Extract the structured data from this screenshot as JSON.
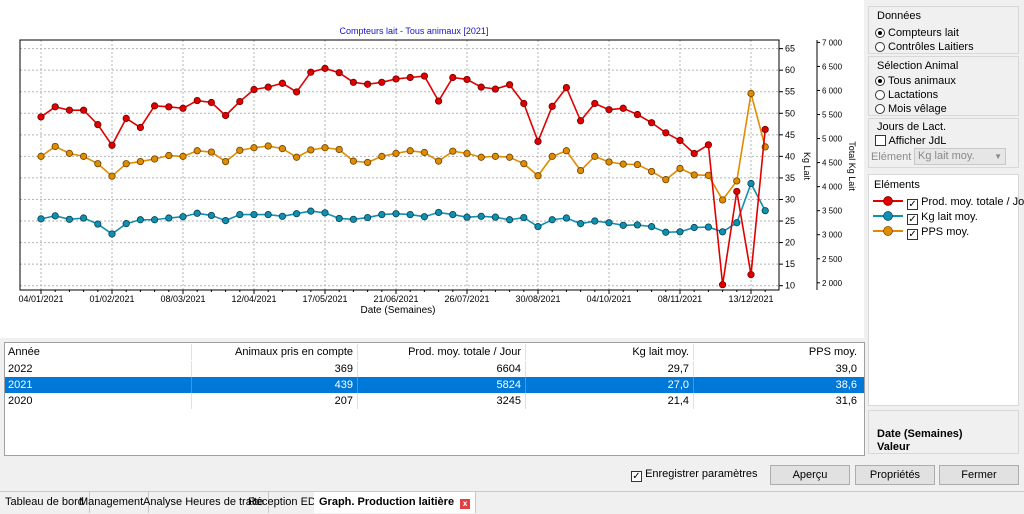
{
  "chart": {
    "title": "Compteurs lait - Tous animaux [2021]",
    "xlabel": "Date (Semaines)",
    "ylabel_left": "Kg Lait",
    "ylabel_right": "Total Kg Lait"
  },
  "chart_data": {
    "type": "line",
    "title": "Compteurs lait - Tous animaux [2021]",
    "xlabel": "Date (Semaines)",
    "ylabel": "Kg Lait",
    "y2label": "Total Kg Lait",
    "x_tick_labels": [
      "04/01/2021",
      "01/02/2021",
      "08/03/2021",
      "12/04/2021",
      "17/05/2021",
      "21/06/2021",
      "26/07/2021",
      "30/08/2021",
      "04/10/2021",
      "08/11/2021",
      "13/12/2021"
    ],
    "y_ticks": [
      10,
      15,
      20,
      25,
      30,
      35,
      40,
      45,
      50,
      55,
      60,
      65
    ],
    "y2_ticks": [
      "2 000",
      "2 500",
      "3 000",
      "3 500",
      "4 000",
      "4 500",
      "5 000",
      "5 500",
      "6 000",
      "6 500",
      "7 000"
    ],
    "ylim": [
      9,
      67
    ],
    "y2lim": [
      1850,
      7050
    ],
    "grid": true,
    "x_weeks": [
      1,
      2,
      3,
      4,
      5,
      6,
      7,
      8,
      9,
      10,
      11,
      12,
      13,
      14,
      15,
      16,
      17,
      18,
      19,
      20,
      21,
      22,
      23,
      24,
      25,
      26,
      27,
      28,
      29,
      30,
      31,
      32,
      33,
      34,
      35,
      36,
      37,
      38,
      39,
      40,
      41,
      42,
      43,
      44,
      45,
      46,
      47,
      48,
      49,
      50,
      51,
      52
    ],
    "series": [
      {
        "name": "Prod. moy. totale / Jour",
        "color": "#e00000",
        "axis": "right",
        "values": [
          5450,
          5660,
          5590,
          5590,
          5290,
          4860,
          5420,
          5230,
          5680,
          5660,
          5630,
          5790,
          5750,
          5480,
          5770,
          6020,
          6070,
          6150,
          5970,
          6380,
          6460,
          6370,
          6170,
          6130,
          6170,
          6240,
          6270,
          6300,
          5780,
          6270,
          6230,
          6070,
          6030,
          6120,
          5730,
          4940,
          5670,
          6060,
          5370,
          5730,
          5600,
          5630,
          5500,
          5330,
          5120,
          4960,
          4690,
          4870,
          1960,
          3900,
          2170,
          5190
        ]
      },
      {
        "name": "Kg lait moy.",
        "color": "#1090b0",
        "axis": "left",
        "values": [
          25.5,
          26.2,
          25.4,
          25.7,
          24.3,
          22.0,
          24.4,
          25.3,
          25.3,
          25.7,
          26.0,
          26.8,
          26.3,
          25.1,
          26.5,
          26.5,
          26.5,
          26.1,
          26.7,
          27.3,
          26.9,
          25.6,
          25.4,
          25.8,
          26.5,
          26.7,
          26.5,
          26.0,
          27.0,
          26.5,
          25.9,
          26.1,
          25.9,
          25.3,
          25.8,
          23.7,
          25.3,
          25.7,
          24.4,
          25.0,
          24.6,
          24.0,
          24.1,
          23.7,
          22.4,
          22.5,
          23.5,
          23.6,
          22.5,
          24.6,
          33.7,
          27.4
        ]
      },
      {
        "name": "PPS moy.",
        "color": "#e08c00",
        "axis": "left",
        "values": [
          40.0,
          42.3,
          40.7,
          40.0,
          38.3,
          35.4,
          38.3,
          38.8,
          39.4,
          40.2,
          40.0,
          41.3,
          41.0,
          38.8,
          41.4,
          42.0,
          42.4,
          41.8,
          39.8,
          41.5,
          42.0,
          41.6,
          38.9,
          38.6,
          40.0,
          40.7,
          41.3,
          40.9,
          38.9,
          41.2,
          40.7,
          39.8,
          40.0,
          39.8,
          38.3,
          35.5,
          40.0,
          41.3,
          36.7,
          40.0,
          38.7,
          38.2,
          38.1,
          36.5,
          34.6,
          37.2,
          35.7,
          35.6,
          29.9,
          34.3,
          54.6,
          42.2
        ]
      }
    ]
  },
  "table": {
    "headers": [
      "Année",
      "Animaux pris en compte",
      "Prod. moy. totale / Jour",
      "Kg lait moy.",
      "PPS moy."
    ],
    "rows": [
      [
        "2022",
        "369",
        "6604",
        "29,7",
        "39,0"
      ],
      [
        "2021",
        "439",
        "5824",
        "27,0",
        "38,6"
      ],
      [
        "2020",
        "207",
        "3245",
        "21,4",
        "31,6"
      ]
    ],
    "selected_row": 1
  },
  "panel": {
    "donnees_title": "Données",
    "donnees_options": [
      "Compteurs lait",
      "Contrôles Laitiers"
    ],
    "selection_title": "Sélection Animal",
    "selection_options": [
      "Tous animaux",
      "Lactations",
      "Mois vêlage"
    ],
    "jours_title": "Jours de Lact.",
    "afficher_label": "Afficher  JdL",
    "element_label": "Elément",
    "element_value": "Kg lait moy.",
    "elements_title": "Eléments",
    "legend": [
      "Prod. moy. totale / Jour",
      "Kg lait moy.",
      "PPS moy."
    ],
    "info_date": "Date (Semaines)",
    "info_valeur": "Valeur"
  },
  "footer": {
    "save_params_label": "Enregistrer paramètres",
    "apercu": "Aperçu",
    "proprietes": "Propriétés",
    "fermer": "Fermer"
  },
  "tabs": [
    "Tableau de bord",
    "Management",
    "Analyse Heures de traite",
    "Réception EDEL",
    "Graph. Production laitière"
  ],
  "colors": {
    "selection": "#0078d7",
    "red": "#e00000",
    "blue": "#1090b0",
    "orange": "#e08c00"
  }
}
